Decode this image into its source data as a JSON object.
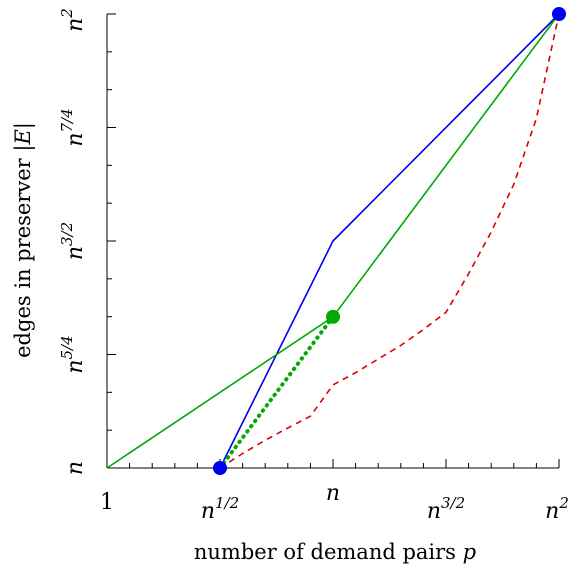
{
  "chart_data": {
    "type": "line",
    "title": "",
    "xlabel": "number of demand pairs",
    "xlabel_var": "p",
    "ylabel": "edges in preserver",
    "ylabel_var": "|E|",
    "x_scale": "log_n (exponent of n)",
    "y_scale": "log_n (exponent of n)",
    "xlim": [
      0,
      2
    ],
    "ylim": [
      1,
      2
    ],
    "x_ticks": [
      {
        "value": 0,
        "base": "1",
        "exp": ""
      },
      {
        "value": 0.5,
        "base": "n",
        "exp": "1/2"
      },
      {
        "value": 1,
        "base": "n",
        "exp": ""
      },
      {
        "value": 1.5,
        "base": "n",
        "exp": "3/2"
      },
      {
        "value": 2,
        "base": "n",
        "exp": "2"
      }
    ],
    "x_minor_ticks": [
      0.1,
      0.2,
      0.3,
      0.4,
      0.6,
      0.7,
      0.8,
      0.9,
      1.1,
      1.2,
      1.3,
      1.4,
      1.6,
      1.7,
      1.8,
      1.9
    ],
    "y_ticks": [
      {
        "value": 1,
        "base": "n",
        "exp": ""
      },
      {
        "value": 1.25,
        "base": "n",
        "exp": "5/4"
      },
      {
        "value": 1.5,
        "base": "n",
        "exp": "3/2"
      },
      {
        "value": 1.75,
        "base": "n",
        "exp": "7/4"
      },
      {
        "value": 2,
        "base": "n",
        "exp": "2"
      }
    ],
    "y_minor_ticks": [
      1.0833,
      1.1667,
      1.3333,
      1.4167,
      1.5833,
      1.6667,
      1.8333,
      1.9167
    ],
    "series": [
      {
        "color": "#0000ee",
        "style": "solid",
        "x": [
          0.5,
          1,
          2
        ],
        "y": [
          1,
          1.5,
          2
        ]
      },
      {
        "color": "#00aa00",
        "style": "solid",
        "x": [
          0,
          1,
          2
        ],
        "y": [
          1,
          1.333,
          2
        ]
      },
      {
        "color": "#00aa00",
        "style": "dotted",
        "x": [
          0.5,
          1
        ],
        "y": [
          1,
          1.333
        ]
      },
      {
        "color": "#dd0000",
        "style": "dashed",
        "x": [
          0.5,
          0.6,
          0.7,
          0.8,
          0.9,
          1.0,
          1.1,
          1.2,
          1.3,
          1.4,
          1.5,
          1.6,
          1.7,
          1.8,
          1.9,
          2.0
        ],
        "y": [
          1.0,
          1.032,
          1.061,
          1.088,
          1.114,
          1.183,
          1.21,
          1.24,
          1.27,
          1.305,
          1.343,
          1.428,
          1.52,
          1.625,
          1.77,
          2.0
        ]
      }
    ],
    "markers": [
      {
        "color": "#0000ee",
        "x": 0.5,
        "y": 1
      },
      {
        "color": "#0000ee",
        "x": 2,
        "y": 2
      },
      {
        "color": "#00aa00",
        "x": 1,
        "y": 1.333
      }
    ],
    "grid": false,
    "legend": "none"
  }
}
